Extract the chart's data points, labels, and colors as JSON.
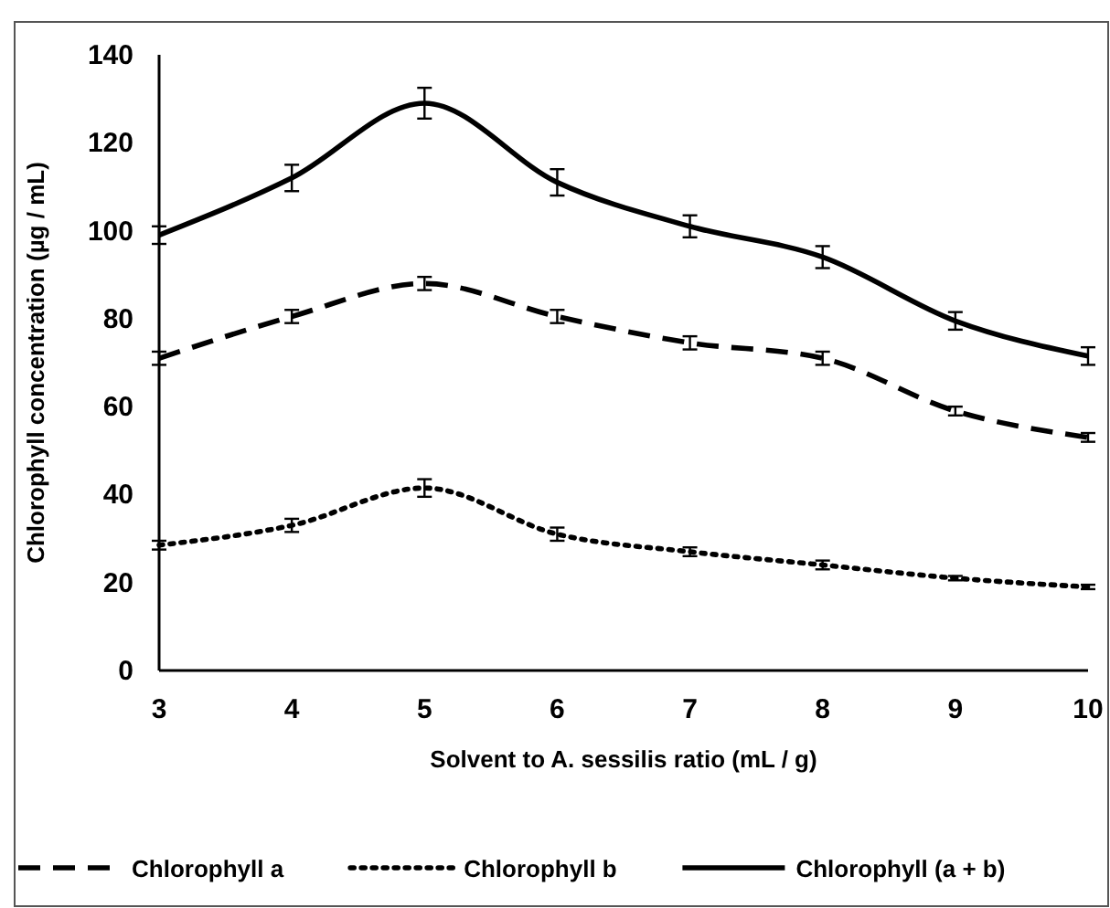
{
  "chart_data": {
    "type": "line",
    "xlabel": "Solvent to A. sessilis ratio (mL / g)",
    "ylabel": "Chlorophyll concentration (µg / mL)",
    "x": [
      3,
      4,
      5,
      6,
      7,
      8,
      9,
      10
    ],
    "xlim": [
      3,
      10
    ],
    "xticks": [
      3,
      4,
      5,
      6,
      7,
      8,
      9,
      10
    ],
    "ylim": [
      0,
      140
    ],
    "yticks": [
      0,
      20,
      40,
      60,
      80,
      100,
      120,
      140
    ],
    "grid": false,
    "legend": "bottom",
    "marker": "none",
    "series": [
      {
        "name": "Chlorophyll a",
        "color": "#000000",
        "line_style": "dashed",
        "values": [
          71,
          80.5,
          88,
          80.5,
          74.5,
          71,
          59,
          53
        ],
        "errors": [
          1.5,
          1.5,
          1.5,
          1.5,
          1.5,
          1.5,
          1,
          1
        ]
      },
      {
        "name": "Chlorophyll b",
        "color": "#000000",
        "line_style": "dotted",
        "values": [
          28.5,
          33,
          41.5,
          31,
          27,
          24,
          21,
          19
        ],
        "errors": [
          1,
          1.5,
          2,
          1.5,
          1,
          1,
          0.5,
          0.5
        ]
      },
      {
        "name": "Chlorophyll  (a + b)",
        "color": "#000000",
        "line_style": "solid",
        "values": [
          99,
          112,
          129,
          111,
          101,
          94,
          79.5,
          71.5
        ],
        "errors": [
          2,
          3,
          3.5,
          3,
          2.5,
          2.5,
          2,
          2
        ]
      }
    ]
  }
}
